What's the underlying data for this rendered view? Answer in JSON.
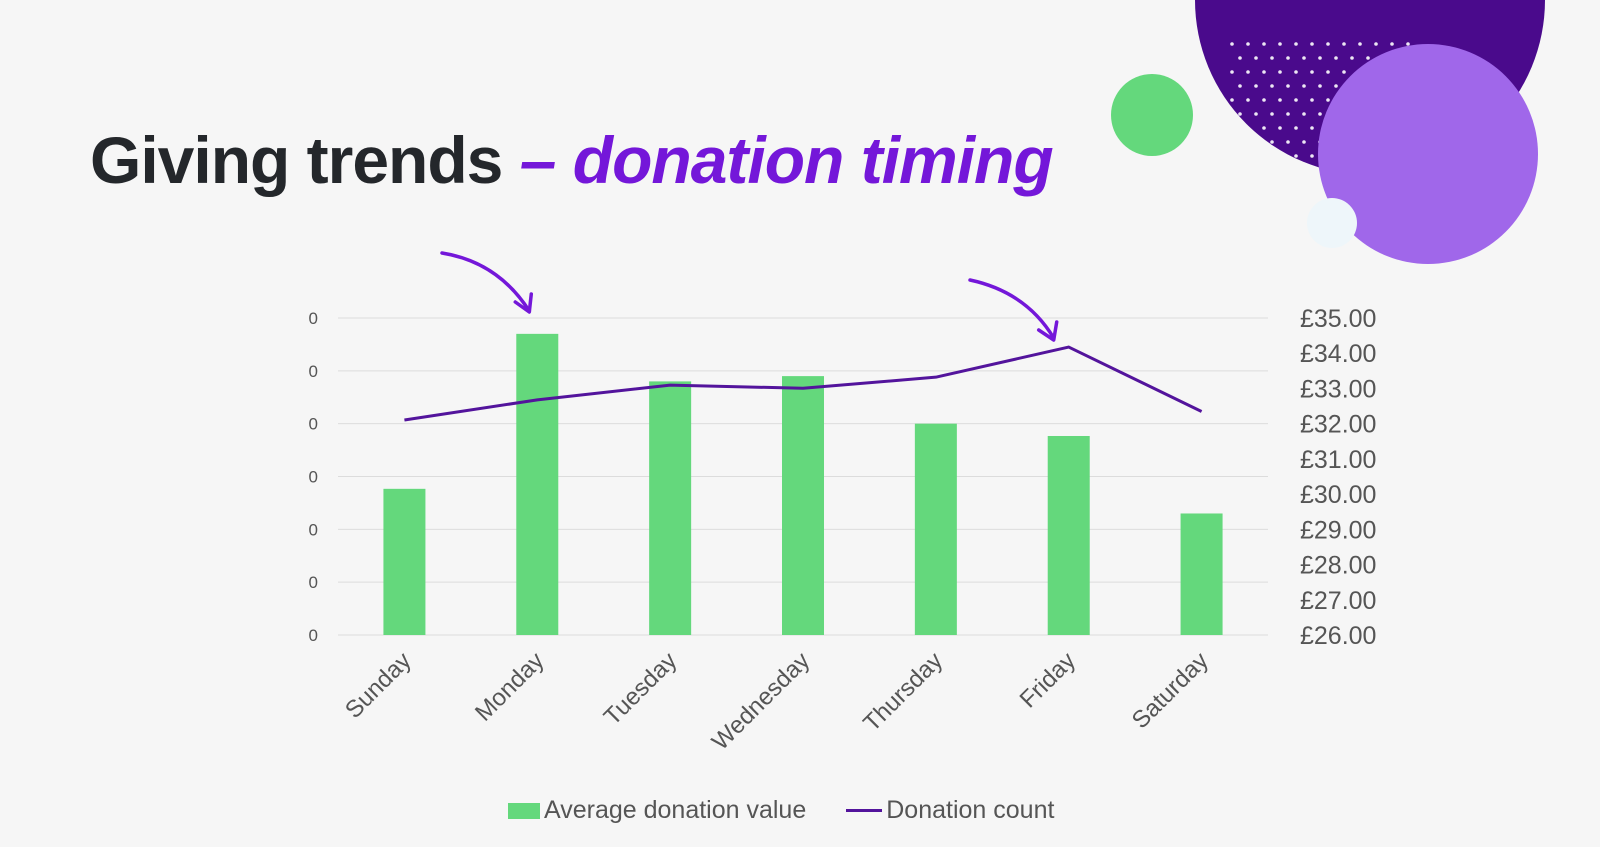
{
  "title": {
    "main": "Giving trends",
    "accent": "– donation timing"
  },
  "colors": {
    "bar": "#64d87c",
    "line": "#53149c",
    "title_accent": "#7417d9",
    "arrow": "#7417d9"
  },
  "chart_data": {
    "type": "bar",
    "categories": [
      "Sunday",
      "Monday",
      "Tuesday",
      "Wednesday",
      "Thursday",
      "Friday",
      "Saturday"
    ],
    "series": [
      {
        "name": "Average donation value",
        "type": "bar",
        "axis": "right",
        "values": [
          30.15,
          34.55,
          33.2,
          33.35,
          32.0,
          31.65,
          29.45
        ]
      },
      {
        "name": "Donation count",
        "type": "line",
        "axis": "left",
        "values": [
          4.07,
          4.45,
          4.73,
          4.67,
          4.88,
          5.45,
          4.23
        ]
      }
    ],
    "y_left": {
      "ticks": [
        "0",
        "0",
        "0",
        "0",
        "0",
        "0",
        "0"
      ],
      "range": [
        0,
        6
      ]
    },
    "y_right": {
      "ticks": [
        "£35.00",
        "£34.00",
        "£33.00",
        "£32.00",
        "£31.00",
        "£30.00",
        "£29.00",
        "£28.00",
        "£27.00",
        "£26.00"
      ],
      "range": [
        26,
        35
      ]
    },
    "grid": true,
    "annotations": [
      "arrow pointing to Monday bar",
      "arrow pointing to Friday line peak"
    ],
    "legend": {
      "position": "bottom",
      "entries": [
        "Average donation value",
        "Donation count"
      ]
    }
  }
}
